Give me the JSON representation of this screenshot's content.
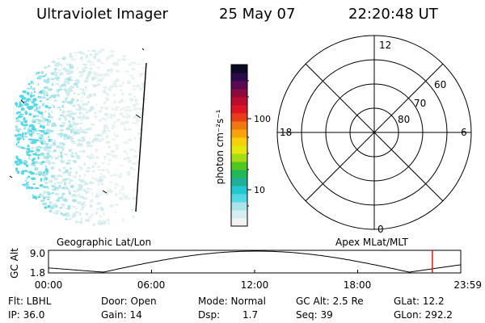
{
  "header": {
    "instrument": "Ultraviolet Imager",
    "date": "25 May 07",
    "time": "22:20:48 UT"
  },
  "colorbar": {
    "label": "photon cm⁻²s⁻¹",
    "ticks": [
      "100",
      "10"
    ],
    "scale": "log",
    "colors": [
      "#f2f2f2",
      "#d6eef0",
      "#a8e4ea",
      "#55d8e6",
      "#22c8d0",
      "#1fb09a",
      "#21b85a",
      "#52c81f",
      "#a6dc14",
      "#e4e80a",
      "#f8d00a",
      "#f8a20c",
      "#f07810",
      "#e83c1a",
      "#e01424",
      "#bc0b2c",
      "#8c0a3e",
      "#5a0a52",
      "#2c0a4a",
      "#0a0a22"
    ]
  },
  "polar_grid": {
    "mlt_labels": [
      "12",
      "18",
      "6",
      "0"
    ],
    "lat_labels": [
      "60",
      "70",
      "80"
    ]
  },
  "timeline": {
    "left_label": "Geographic Lat/Lon",
    "right_label": "Apex MLat/MLT",
    "axis_label": "GC Alt",
    "y_ticks": [
      "9.0",
      "1.8"
    ],
    "x_ticks": [
      "00:00",
      "06:00",
      "12:00",
      "18:00",
      "23:59"
    ],
    "marker_color": "#e01818",
    "marker_hour": 22.35
  },
  "info": {
    "flt": "Flt: LBHL",
    "ip": "IP: 36.0",
    "door": "Door: Open",
    "gain": "Gain: 14",
    "mode": "Mode: Normal",
    "dsp_label": "Dsp:",
    "dsp_value": "1.7",
    "gcalt": "GC Alt: 2.5 Re",
    "seq": "Seq: 39",
    "glat": "GLat:  12.2",
    "glon": "GLon: 292.2"
  }
}
